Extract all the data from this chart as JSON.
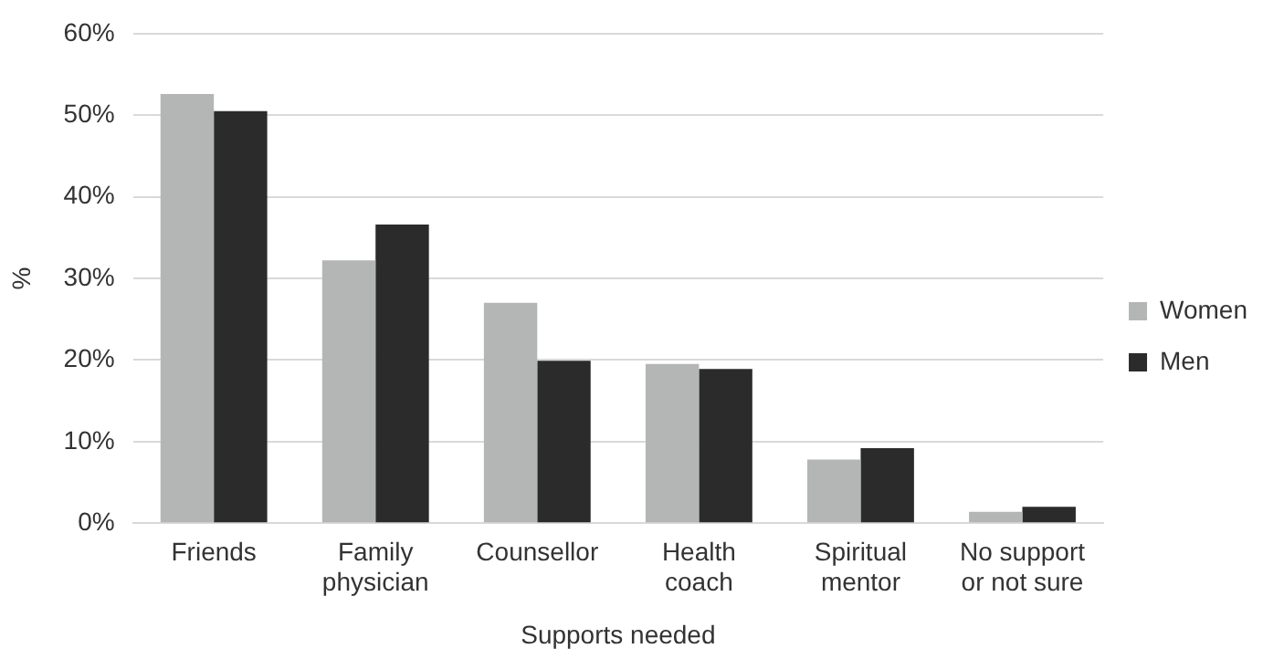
{
  "chart_data": {
    "type": "bar",
    "xlabel": "Supports needed",
    "ylabel": "%",
    "categories": [
      "Friends",
      "Family physician",
      "Counsellor",
      "Health coach",
      "Spiritual mentor",
      "No support or not sure"
    ],
    "series": [
      {
        "name": "Women",
        "color": "#b4b5b5",
        "values": [
          52.6,
          32.2,
          27.0,
          19.5,
          7.8,
          1.4
        ]
      },
      {
        "name": "Men",
        "color": "#2b2b2b",
        "values": [
          50.5,
          36.6,
          19.9,
          18.9,
          9.2,
          2.0
        ]
      }
    ],
    "ylim": [
      0,
      60
    ],
    "yticks": [
      {
        "value": 0,
        "label": "0%"
      },
      {
        "value": 10,
        "label": "10%"
      },
      {
        "value": 20,
        "label": "20%"
      },
      {
        "value": 30,
        "label": "30%"
      },
      {
        "value": 40,
        "label": "40%"
      },
      {
        "value": 50,
        "label": "50%"
      },
      {
        "value": 60,
        "label": "60%"
      }
    ],
    "grid": "y",
    "legend": "right"
  }
}
